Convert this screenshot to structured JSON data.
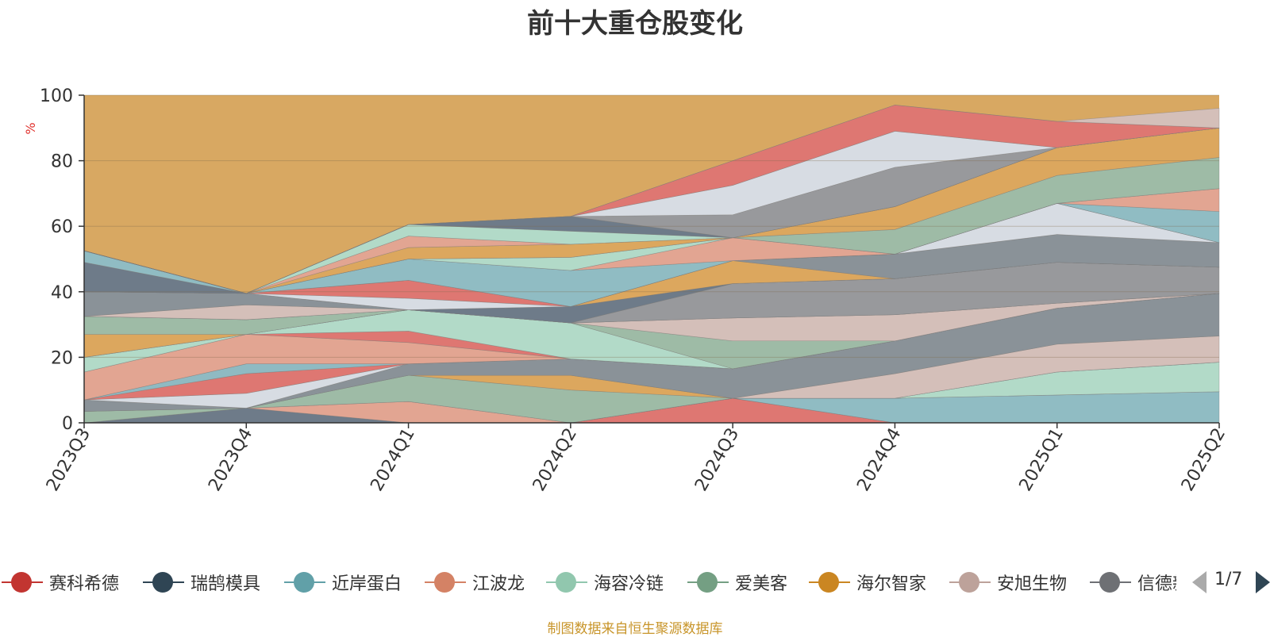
{
  "chart_data": {
    "type": "area",
    "stacked": true,
    "title": "前十大重仓股变化",
    "ylabel": "%",
    "xlabel": "",
    "ylim": [
      0,
      100
    ],
    "yticks": [
      0,
      20,
      40,
      60,
      80,
      100
    ],
    "grid": true,
    "legend_position": "bottom",
    "categories": [
      "2023Q3",
      "2023Q4",
      "2024Q1",
      "2024Q2",
      "2024Q3",
      "2024Q4",
      "2025Q1",
      "2025Q2"
    ],
    "stack_top_values": [
      47,
      49,
      51,
      65,
      80,
      86,
      92,
      88
    ],
    "fill_to_100_color": "#d8a862",
    "bands": [
      {
        "color": "#de7772",
        "values": [
          0,
          0,
          0,
          0,
          7.5,
          0,
          0,
          0
        ]
      },
      {
        "color": "#6e7b89",
        "values": [
          0,
          4.5,
          0,
          0,
          0,
          0,
          0,
          0
        ]
      },
      {
        "color": "#90bcc3",
        "values": [
          0,
          0,
          0,
          0,
          0,
          7.5,
          8.5,
          9.5
        ]
      },
      {
        "color": "#e2a592",
        "values": [
          0,
          0,
          6.5,
          0,
          0,
          0,
          0,
          0
        ]
      },
      {
        "color": "#b2dac8",
        "values": [
          0,
          0,
          0,
          0,
          0,
          0,
          7,
          9
        ]
      },
      {
        "color": "#9ebba6",
        "values": [
          3.5,
          0,
          8,
          10,
          0,
          0,
          0,
          0
        ]
      },
      {
        "color": "#dca75e",
        "values": [
          0,
          0,
          0,
          4.5,
          0,
          0,
          0,
          0
        ]
      },
      {
        "color": "#d4bfb9",
        "values": [
          0,
          0,
          0,
          0,
          0,
          7.5,
          8.5,
          8
        ]
      },
      {
        "color": "#8a9298",
        "values": [
          3.5,
          0,
          3.5,
          5,
          9,
          10,
          11,
          13
        ]
      },
      {
        "color": "#d7dce3",
        "values": [
          0,
          4.5,
          0,
          0,
          0,
          0,
          0,
          0
        ]
      },
      {
        "color": "#de7772",
        "values": [
          0,
          6,
          0,
          0,
          0,
          0,
          0,
          0
        ]
      },
      {
        "color": "#8fbac2",
        "values": [
          0,
          3,
          0,
          0,
          0,
          0,
          0,
          0
        ]
      },
      {
        "color": "#e2a592",
        "values": [
          8.5,
          9,
          6.5,
          0,
          0,
          0,
          0,
          0
        ]
      },
      {
        "color": "#de7772",
        "values": [
          0,
          0,
          3.5,
          0,
          0,
          0,
          0,
          0
        ]
      },
      {
        "color": "#b2dac8",
        "values": [
          4.5,
          0,
          6.5,
          11,
          0,
          0,
          0,
          0
        ]
      },
      {
        "color": "#9ebba6",
        "values": [
          0,
          0,
          0,
          0,
          8.5,
          0,
          0,
          0
        ]
      },
      {
        "color": "#d4bfb9",
        "values": [
          0,
          0,
          0,
          0,
          7,
          8,
          1.5,
          0
        ]
      },
      {
        "color": "#dca75e",
        "values": [
          7,
          0,
          0,
          0,
          0,
          0,
          0,
          0
        ]
      },
      {
        "color": "#9ebba6",
        "values": [
          5.5,
          4.5,
          0,
          0,
          0,
          0,
          0,
          0
        ]
      },
      {
        "color": "#98999c",
        "values": [
          0,
          0,
          0,
          0,
          10.5,
          11,
          12.5,
          8
        ]
      },
      {
        "color": "#6e7b89",
        "values": [
          0,
          0,
          0,
          5,
          0,
          0,
          0,
          0
        ]
      },
      {
        "color": "#d4bfb9",
        "values": [
          0,
          4.5,
          0,
          0,
          0,
          0,
          0,
          0
        ]
      },
      {
        "color": "#8a9298",
        "values": [
          7.5,
          3.5,
          0,
          0,
          0,
          0,
          0,
          0
        ]
      },
      {
        "color": "#dca75e",
        "values": [
          0,
          0,
          0,
          0,
          7,
          0,
          0,
          0
        ]
      },
      {
        "color": "#8a9298",
        "values": [
          0,
          0,
          0,
          0,
          0,
          7.5,
          8.5,
          7.5
        ]
      },
      {
        "color": "#d7dce3",
        "values": [
          0,
          0,
          3.5,
          0,
          0,
          0,
          9.5,
          0
        ]
      },
      {
        "color": "#de7772",
        "values": [
          0,
          0,
          5.5,
          0,
          0,
          0,
          0,
          0
        ]
      },
      {
        "color": "#6e7b89",
        "values": [
          9,
          0,
          0,
          0,
          0,
          0,
          0,
          0
        ]
      },
      {
        "color": "#90bcc3",
        "values": [
          3.5,
          0,
          6.5,
          11,
          0,
          0,
          0,
          9.5
        ]
      },
      {
        "color": "#e2a592",
        "values": [
          0,
          0,
          0,
          0,
          7,
          0,
          0,
          7
        ]
      },
      {
        "color": "#b2dac8",
        "values": [
          0,
          0,
          0,
          4,
          0,
          0,
          0,
          0
        ]
      },
      {
        "color": "#9ebba6",
        "values": [
          0,
          0,
          0,
          0,
          0,
          7.5,
          8.5,
          9.5
        ]
      },
      {
        "color": "#dca75e",
        "values": [
          0,
          0,
          3.5,
          4,
          0,
          7,
          8.5,
          9
        ]
      },
      {
        "color": "#e2a592",
        "values": [
          0,
          0,
          3.5,
          0,
          0,
          0,
          0,
          0
        ]
      },
      {
        "color": "#b2dac8",
        "values": [
          0,
          0,
          3.5,
          4,
          0,
          0,
          0,
          0
        ]
      },
      {
        "color": "#6e7b89",
        "values": [
          0,
          0,
          0,
          4.5,
          0,
          0,
          0,
          0
        ]
      },
      {
        "color": "#98999c",
        "values": [
          0,
          0,
          0,
          0,
          7,
          12,
          0,
          0
        ]
      },
      {
        "color": "#d7dce3",
        "values": [
          0,
          0,
          0,
          0,
          9,
          11,
          0,
          0
        ]
      },
      {
        "color": "#de7772",
        "values": [
          0,
          0,
          0,
          0,
          7.5,
          8,
          8,
          0
        ]
      },
      {
        "color": "#d4bfb9",
        "values": [
          0,
          0,
          0,
          0,
          0,
          0,
          0,
          6
        ]
      }
    ]
  },
  "legend": {
    "items": [
      {
        "label": "赛科希德",
        "color": "#c23531"
      },
      {
        "label": "瑞鹄模具",
        "color": "#2f4554"
      },
      {
        "label": "近岸蛋白",
        "color": "#61a0a8"
      },
      {
        "label": "江波龙",
        "color": "#d48265"
      },
      {
        "label": "海容冷链",
        "color": "#91c7ae"
      },
      {
        "label": "爱美客",
        "color": "#749f83"
      },
      {
        "label": "海尔智家",
        "color": "#ca8622"
      },
      {
        "label": "安旭生物",
        "color": "#bda29a"
      },
      {
        "label": "信德新材",
        "color": "#6e7074"
      }
    ],
    "page": "1/7"
  },
  "source": "制图数据来自恒生聚源数据库"
}
